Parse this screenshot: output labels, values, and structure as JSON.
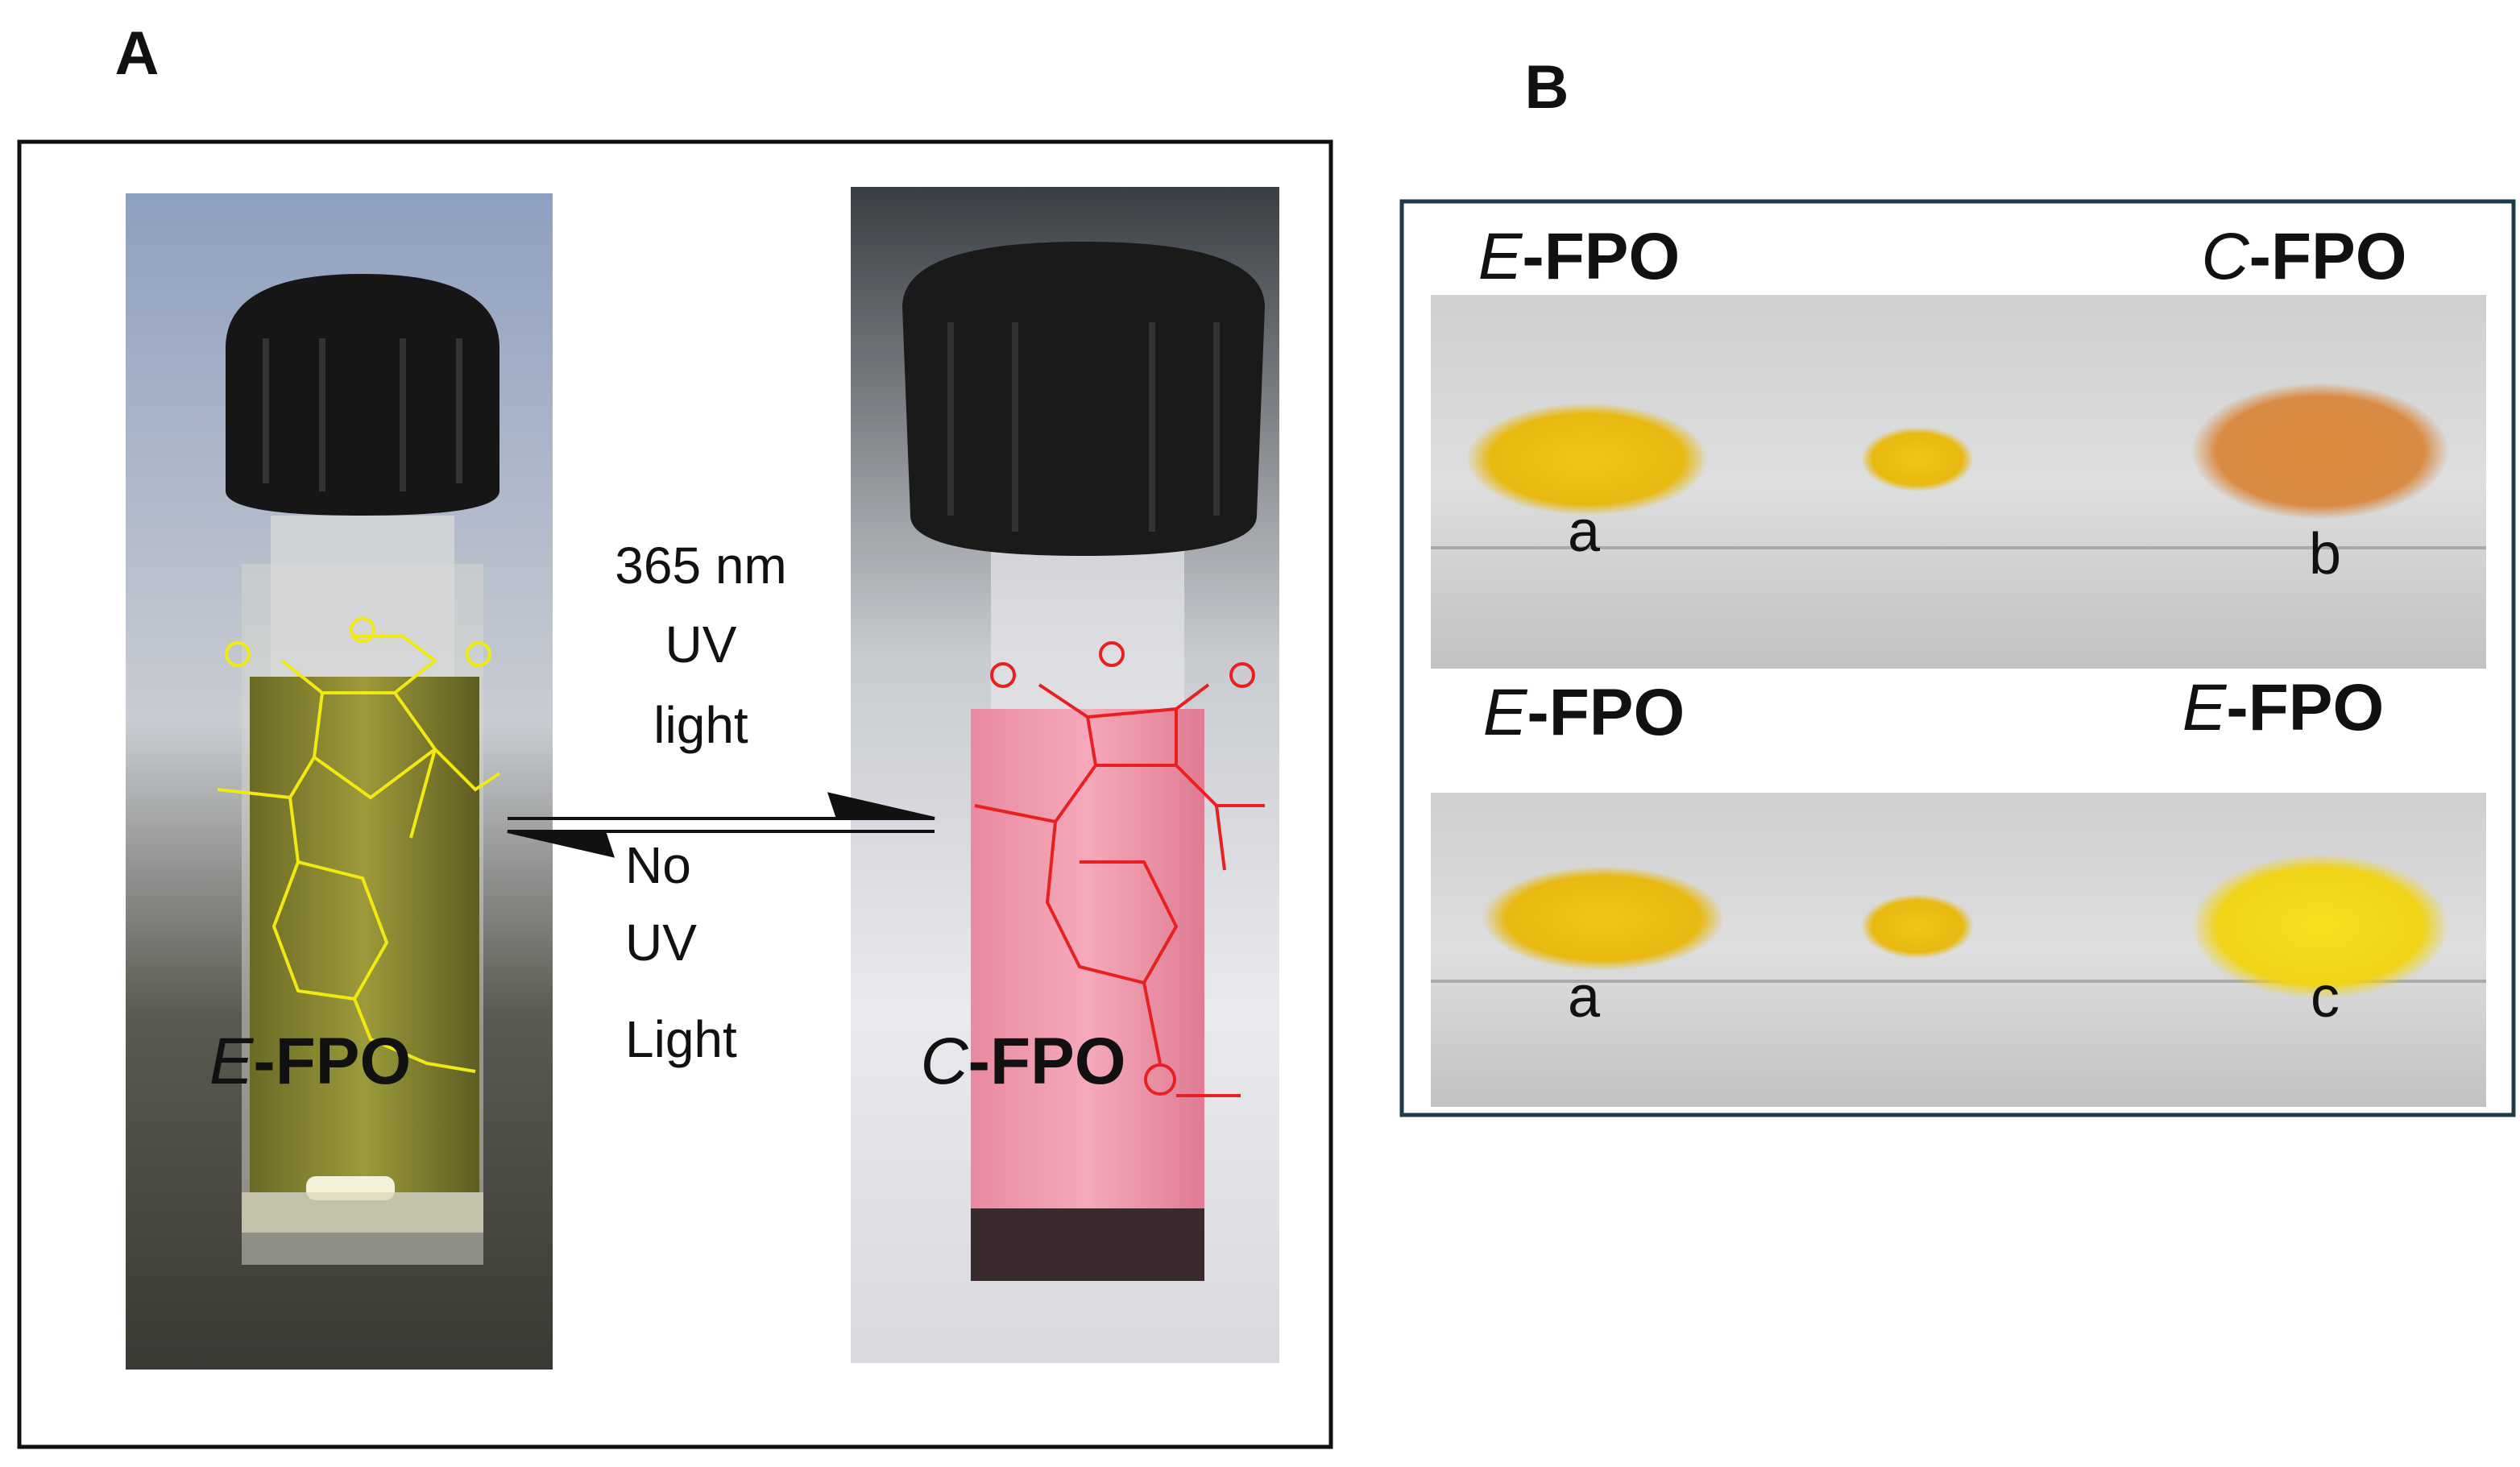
{
  "panel_a": {
    "label": "A",
    "left_compound": {
      "prefix": "E",
      "name": "-FPO"
    },
    "right_compound": {
      "prefix": "C",
      "name": "-FPO"
    },
    "forward_condition": [
      "365 nm",
      "UV",
      "light"
    ],
    "reverse_condition": [
      "No",
      "UV",
      "Light"
    ]
  },
  "panel_b": {
    "label": "B",
    "top_row": {
      "left": {
        "prefix": "E",
        "name": "-FPO"
      },
      "right": {
        "prefix": "C",
        "name": "-FPO"
      },
      "samples": [
        "a",
        "b"
      ]
    },
    "bottom_row": {
      "left": {
        "prefix": "E",
        "name": "-FPO"
      },
      "right": {
        "prefix": "E",
        "name": "-FPO"
      },
      "samples": [
        "a",
        "c"
      ]
    }
  }
}
